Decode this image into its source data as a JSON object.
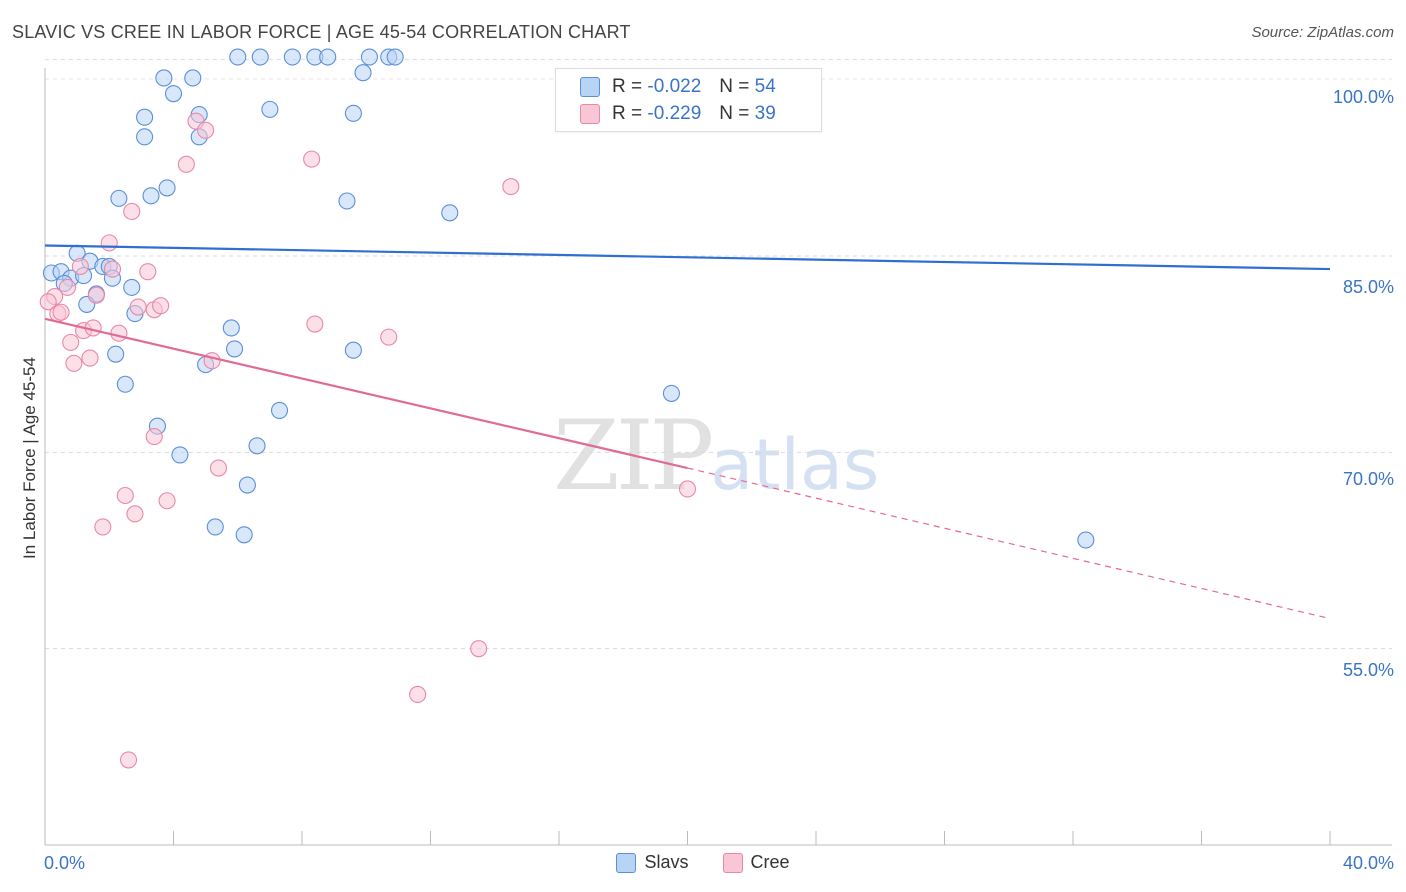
{
  "title": "SLAVIC VS CREE IN LABOR FORCE | AGE 45-54 CORRELATION CHART",
  "source": "Source: ZipAtlas.com",
  "watermark": {
    "zip": "ZIP",
    "atlas": "atlas"
  },
  "colors": {
    "slavs": "#5b8fd9",
    "cree": "#e888a8",
    "slavs_line": "#2f6fd0",
    "cree_line": "#e06b94",
    "tick_text": "#3a74c8"
  },
  "legend": {
    "slavs": {
      "label": "Slavs",
      "r_label": "R =",
      "r": "-0.022",
      "n_label": "N =",
      "n": "54"
    },
    "cree": {
      "label": "Cree",
      "r_label": "R =",
      "r": "-0.229",
      "n_label": "N =",
      "n": "39"
    }
  },
  "chart_data": {
    "type": "scatter",
    "title": "SLAVIC VS CREE IN LABOR FORCE | AGE 45-54 CORRELATION CHART",
    "xlabel": "",
    "ylabel": "In Labor Force | Age 45-54",
    "xlim": [
      0,
      40
    ],
    "ylim": [
      40,
      101.5
    ],
    "x_tick_labels": [
      "0.0%",
      "40.0%"
    ],
    "y_ticks": [
      100,
      85,
      70,
      55
    ],
    "y_tick_labels": [
      "100.0%",
      "85.0%",
      "70.0%",
      "55.0%"
    ],
    "grid": true,
    "series": [
      {
        "name": "Slavs",
        "trend": {
          "x0": 0,
          "y0": 85.8,
          "x1": 40,
          "y1": 84.0
        },
        "points": [
          [
            6.0,
            100.2
          ],
          [
            6.7,
            100.2
          ],
          [
            7.7,
            100.2
          ],
          [
            8.4,
            100.2
          ],
          [
            8.8,
            100.2
          ],
          [
            10.1,
            100.2
          ],
          [
            10.7,
            100.2
          ],
          [
            10.9,
            100.2
          ],
          [
            3.7,
            98.6
          ],
          [
            4.6,
            98.6
          ],
          [
            4.0,
            97.4
          ],
          [
            9.9,
            99.0
          ],
          [
            3.1,
            95.6
          ],
          [
            4.8,
            95.8
          ],
          [
            7.0,
            96.2
          ],
          [
            9.6,
            95.9
          ],
          [
            3.1,
            94.1
          ],
          [
            4.8,
            94.1
          ],
          [
            2.3,
            89.4
          ],
          [
            3.3,
            89.6
          ],
          [
            3.8,
            90.2
          ],
          [
            9.4,
            89.2
          ],
          [
            12.6,
            88.3
          ],
          [
            1.0,
            85.2
          ],
          [
            1.4,
            84.6
          ],
          [
            1.8,
            84.2
          ],
          [
            2.0,
            84.2
          ],
          [
            0.2,
            83.7
          ],
          [
            0.5,
            83.8
          ],
          [
            0.8,
            83.3
          ],
          [
            1.2,
            83.5
          ],
          [
            2.1,
            83.3
          ],
          [
            0.6,
            82.9
          ],
          [
            2.7,
            82.6
          ],
          [
            1.6,
            82.1
          ],
          [
            1.3,
            81.3
          ],
          [
            2.8,
            80.6
          ],
          [
            5.8,
            79.5
          ],
          [
            2.2,
            77.5
          ],
          [
            5.0,
            76.7
          ],
          [
            5.9,
            77.9
          ],
          [
            9.6,
            77.8
          ],
          [
            2.5,
            75.2
          ],
          [
            19.5,
            74.5
          ],
          [
            7.3,
            73.2
          ],
          [
            3.5,
            72.0
          ],
          [
            4.2,
            69.8
          ],
          [
            6.6,
            70.5
          ],
          [
            6.3,
            67.5
          ],
          [
            5.3,
            64.3
          ],
          [
            6.2,
            63.7
          ],
          [
            32.4,
            63.3
          ]
        ]
      },
      {
        "name": "Cree",
        "trend": {
          "x0": 0,
          "y0": 80.2,
          "x1": 20,
          "y1": 68.8,
          "dashed_to_x": 40,
          "dashed_to_y": 57.3
        },
        "points": [
          [
            4.7,
            95.3
          ],
          [
            5.0,
            94.6
          ],
          [
            8.3,
            92.4
          ],
          [
            4.4,
            92.0
          ],
          [
            14.5,
            90.3
          ],
          [
            2.7,
            88.4
          ],
          [
            2.0,
            86.0
          ],
          [
            1.1,
            84.2
          ],
          [
            0.7,
            82.6
          ],
          [
            1.6,
            82.0
          ],
          [
            0.3,
            81.9
          ],
          [
            0.1,
            81.5
          ],
          [
            0.4,
            80.6
          ],
          [
            3.2,
            83.8
          ],
          [
            2.1,
            84.0
          ],
          [
            2.9,
            81.1
          ],
          [
            3.4,
            80.9
          ],
          [
            3.6,
            81.2
          ],
          [
            0.5,
            80.7
          ],
          [
            8.4,
            79.8
          ],
          [
            1.2,
            79.3
          ],
          [
            1.5,
            79.5
          ],
          [
            2.3,
            79.1
          ],
          [
            10.7,
            78.8
          ],
          [
            0.8,
            78.4
          ],
          [
            1.4,
            77.2
          ],
          [
            0.9,
            76.8
          ],
          [
            5.2,
            77.0
          ],
          [
            3.4,
            71.2
          ],
          [
            5.4,
            68.8
          ],
          [
            2.5,
            66.7
          ],
          [
            3.8,
            66.3
          ],
          [
            2.8,
            65.3
          ],
          [
            1.8,
            64.3
          ],
          [
            20.0,
            67.2
          ],
          [
            13.5,
            55.0
          ],
          [
            11.6,
            51.5
          ],
          [
            2.6,
            46.5
          ]
        ]
      }
    ]
  }
}
